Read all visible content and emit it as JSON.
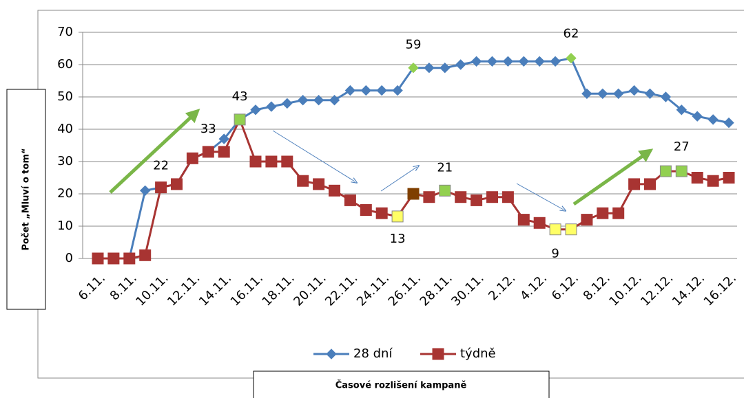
{
  "chart_data": {
    "type": "line",
    "categories": [
      "6.11.",
      null,
      "8.11.",
      null,
      "10.11.",
      null,
      "12.11.",
      null,
      "14.11.",
      null,
      "16.11.",
      null,
      "18.11.",
      null,
      "20.11.",
      null,
      "22.11.",
      null,
      "24.11.",
      null,
      "26.11.",
      null,
      "28.11.",
      null,
      "30.11.",
      null,
      "2.12.",
      null,
      "4.12.",
      null,
      "6.12.",
      null,
      "8.12.",
      null,
      "10.12.",
      null,
      "12.12.",
      null,
      "14.12.",
      null,
      "16.12."
    ],
    "series": [
      {
        "name": "28 dní",
        "color": "#4a7ebb",
        "marker": "diamond",
        "values": [
          0,
          0,
          0,
          21,
          22,
          23,
          31,
          33,
          37,
          43,
          46,
          47,
          48,
          49,
          49,
          49,
          52,
          52,
          52,
          52,
          59,
          59,
          59,
          60,
          61,
          61,
          61,
          61,
          61,
          61,
          62,
          51,
          51,
          51,
          52,
          51,
          50,
          46,
          44,
          43,
          42
        ],
        "highlights": [
          {
            "index": 20,
            "color": "#92d050"
          },
          {
            "index": 30,
            "color": "#92d050"
          }
        ]
      },
      {
        "name": "týdně",
        "color": "#a83432",
        "marker": "square",
        "values": [
          0,
          0,
          0,
          1,
          22,
          23,
          31,
          33,
          33,
          43,
          30,
          30,
          30,
          24,
          23,
          21,
          18,
          15,
          14,
          13,
          20,
          19,
          21,
          19,
          18,
          19,
          19,
          12,
          11,
          9,
          9,
          12,
          14,
          14,
          23,
          23,
          27,
          27,
          25,
          24,
          25
        ],
        "highlights": [
          {
            "index": 9,
            "color": "#92d050"
          },
          {
            "index": 19,
            "color": "#ffff66"
          },
          {
            "index": 20,
            "color": "#7f3f00"
          },
          {
            "index": 22,
            "color": "#92d050"
          },
          {
            "index": 29,
            "color": "#ffff66"
          },
          {
            "index": 30,
            "color": "#ffff66"
          },
          {
            "index": 36,
            "color": "#92d050"
          },
          {
            "index": 37,
            "color": "#92d050"
          }
        ]
      }
    ],
    "ylim": [
      0,
      70
    ],
    "yticks": [
      0,
      10,
      20,
      30,
      40,
      50,
      60,
      70
    ],
    "grid": true,
    "ylabel": "Počet „Mluví o tom“",
    "xlabel": "Časové rozlišení kampaně",
    "legend": "bottom"
  }
}
